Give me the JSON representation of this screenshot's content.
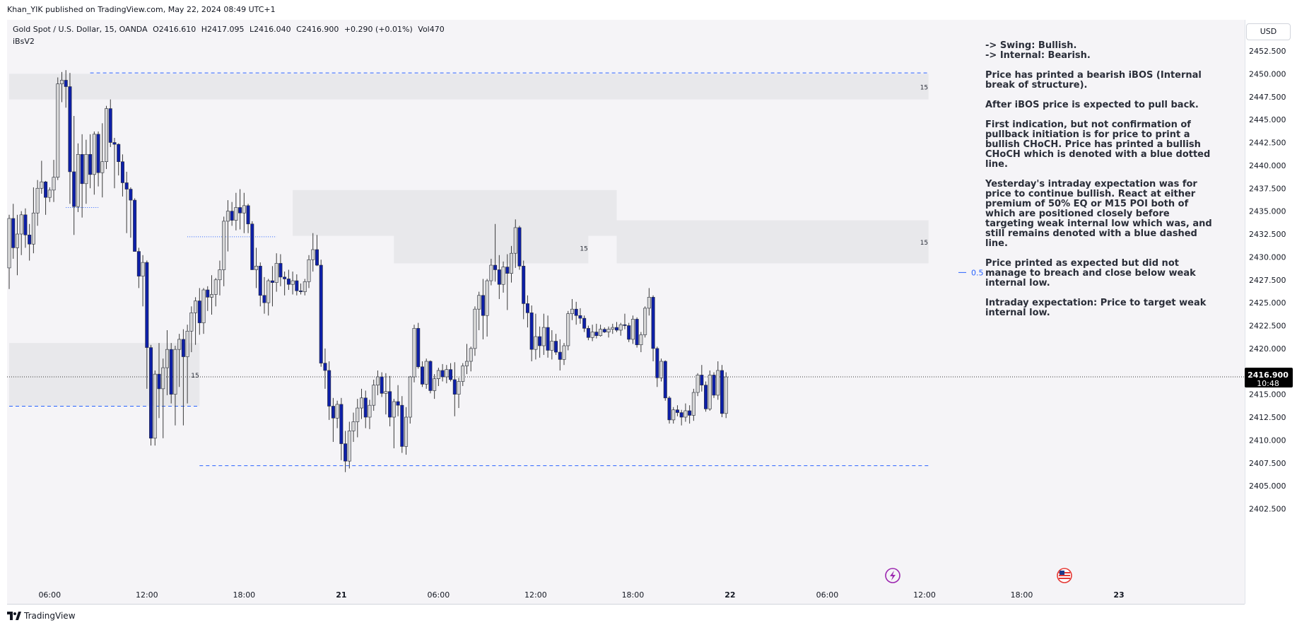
{
  "header": {
    "published_line": "Khan_YIK published on TradingView.com, May 22, 2024 08:49 UTC+1"
  },
  "symbol": {
    "name": "Gold Spot / U.S. Dollar, 15, OANDA",
    "open": "O2416.610",
    "high": "H2417.095",
    "low": "L2416.040",
    "close": "C2416.900",
    "change": "+0.290 (+0.01%)",
    "volume": "Vol470"
  },
  "indicator": {
    "name": "iBsV2"
  },
  "currency_button": "USD",
  "notes": [
    "-> Swing: Bullish.\n-> Internal: Bearish.",
    "Price has printed a bearish iBOS (Internal break of structure).",
    "After iBOS price is expected to pull back.",
    "First indication, but not confirmation of pullback initiation is for price to print a bullish CHoCH. Price has printed a bullish CHoCH which is denoted with a blue dotted line.",
    "Yesterday's intraday expectation was for price to continue bullish. React at either premium of 50% EQ or M15 POI both of which are positioned closely before targeting weak internal low which was, and still remains denoted with a blue dashed line.",
    "Price printed as expected but did not manage to breach and close below weak internal low.",
    "Intraday expectation: Price to target weak internal low."
  ],
  "brand": {
    "label": "TradingView"
  },
  "colors": {
    "bull_body": "#d6d6d6",
    "bear_body": "#0d1fa8",
    "wick": "#3a3a3a",
    "zone": "#e8e8eb",
    "dashed": "#2962ff",
    "price_tag": "#000000"
  },
  "chart_data": {
    "type": "candlestick",
    "title": "Gold Spot / U.S. Dollar, 15, OANDA",
    "yticks": [
      "2452.500",
      "2450.000",
      "2447.500",
      "2445.000",
      "2442.500",
      "2440.000",
      "2437.500",
      "2435.000",
      "2432.500",
      "2430.000",
      "2427.500",
      "2425.000",
      "2422.500",
      "2420.000",
      "2417.500",
      "2415.000",
      "2412.500",
      "2410.000",
      "2407.500",
      "2405.000",
      "2402.500"
    ],
    "ylim": [
      2401.5,
      2455.0
    ],
    "xticks": [
      "06:00",
      "12:00",
      "18:00",
      "21",
      "06:00",
      "12:00",
      "18:00",
      "22",
      "06:00",
      "12:00",
      "18:00",
      "23"
    ],
    "xtick_index": [
      10,
      34,
      58,
      82,
      106,
      130,
      154,
      178,
      202,
      226,
      250,
      274
    ],
    "last_price": "2416.900",
    "countdown": "10:48",
    "last_price_value": 2416.9,
    "eq_label": "0.5",
    "eq_value": 2428.3,
    "zones": [
      {
        "i0": 0,
        "i1": 227,
        "top": 2450.0,
        "bottom": 2447.2,
        "label": "15"
      },
      {
        "i0": 70,
        "i1": 150,
        "top": 2437.3,
        "bottom": 2432.3,
        "label": ""
      },
      {
        "i0": 95,
        "i1": 143,
        "top": 2432.7,
        "bottom": 2429.3,
        "label": "15"
      },
      {
        "i0": 150,
        "i1": 227,
        "top": 2434.0,
        "bottom": 2429.3,
        "label": "15"
      },
      {
        "i0": 0,
        "i1": 47,
        "top": 2420.6,
        "bottom": 2413.7,
        "label": "15"
      }
    ],
    "dashed_lines": [
      {
        "i0": 20,
        "i1": 227,
        "value": 2450.1
      },
      {
        "i0": 0,
        "i1": 47,
        "value": 2413.7
      },
      {
        "i0": 47,
        "i1": 227,
        "value": 2407.2
      }
    ],
    "dotted_lines": [
      {
        "i0": 14,
        "i1": 22,
        "value": 2435.4
      },
      {
        "i0": 44,
        "i1": 66,
        "value": 2432.2
      }
    ],
    "candles": [
      [
        2428.8,
        2434.6,
        2426.5,
        2434.2
      ],
      [
        2434.2,
        2435.8,
        2429.8,
        2431.0
      ],
      [
        2431.0,
        2434.6,
        2428.0,
        2432.5
      ],
      [
        2432.5,
        2435.0,
        2430.2,
        2434.6
      ],
      [
        2434.6,
        2435.3,
        2431.0,
        2432.4
      ],
      [
        2432.4,
        2433.6,
        2429.6,
        2431.4
      ],
      [
        2431.4,
        2437.6,
        2430.4,
        2434.8
      ],
      [
        2434.8,
        2438.4,
        2433.4,
        2437.5
      ],
      [
        2437.5,
        2440.5,
        2436.9,
        2438.2
      ],
      [
        2438.2,
        2438.3,
        2434.6,
        2436.5
      ],
      [
        2436.5,
        2437.6,
        2436.0,
        2437.3
      ],
      [
        2437.3,
        2440.6,
        2436.0,
        2438.7
      ],
      [
        2438.7,
        2449.6,
        2438.4,
        2448.9
      ],
      [
        2448.9,
        2450.2,
        2446.9,
        2449.3
      ],
      [
        2449.3,
        2450.4,
        2446.3,
        2448.6
      ],
      [
        2448.6,
        2450.1,
        2435.8,
        2439.3
      ],
      [
        2439.3,
        2445.4,
        2432.4,
        2435.5
      ],
      [
        2435.5,
        2442.4,
        2434.9,
        2441.2
      ],
      [
        2441.2,
        2443.4,
        2434.3,
        2438.0
      ],
      [
        2438.0,
        2442.8,
        2435.8,
        2441.2
      ],
      [
        2441.2,
        2443.4,
        2437.5,
        2439.0
      ],
      [
        2439.0,
        2443.7,
        2436.8,
        2443.4
      ],
      [
        2443.4,
        2443.7,
        2437.7,
        2439.2
      ],
      [
        2439.2,
        2444.6,
        2436.5,
        2440.4
      ],
      [
        2440.4,
        2446.5,
        2439.6,
        2446.2
      ],
      [
        2446.2,
        2447.2,
        2442.0,
        2442.5
      ],
      [
        2442.5,
        2443.0,
        2437.5,
        2442.3
      ],
      [
        2442.3,
        2442.4,
        2438.9,
        2440.4
      ],
      [
        2440.4,
        2441.2,
        2436.6,
        2438.1
      ],
      [
        2438.1,
        2439.3,
        2432.6,
        2437.4
      ],
      [
        2437.4,
        2437.6,
        2432.1,
        2436.2
      ],
      [
        2436.2,
        2436.4,
        2430.6,
        2430.6
      ],
      [
        2430.6,
        2431.0,
        2426.6,
        2427.9
      ],
      [
        2427.9,
        2430.2,
        2424.6,
        2429.4
      ],
      [
        2429.4,
        2429.6,
        2415.6,
        2420.1
      ],
      [
        2420.1,
        2420.4,
        2409.4,
        2410.2
      ],
      [
        2410.2,
        2417.6,
        2409.4,
        2417.2
      ],
      [
        2417.2,
        2420.6,
        2412.4,
        2415.6
      ],
      [
        2415.6,
        2418.9,
        2410.2,
        2417.9
      ],
      [
        2417.9,
        2422.0,
        2414.9,
        2419.9
      ],
      [
        2419.9,
        2420.6,
        2414.0,
        2415.0
      ],
      [
        2415.0,
        2420.3,
        2411.6,
        2419.9
      ],
      [
        2419.9,
        2421.6,
        2415.8,
        2421.0
      ],
      [
        2421.0,
        2422.1,
        2411.6,
        2419.1
      ],
      [
        2419.1,
        2422.6,
        2414.0,
        2421.9
      ],
      [
        2421.9,
        2424.6,
        2419.6,
        2423.9
      ],
      [
        2423.9,
        2425.6,
        2420.4,
        2425.2
      ],
      [
        2425.2,
        2426.6,
        2421.5,
        2422.8
      ],
      [
        2422.8,
        2426.6,
        2421.6,
        2426.4
      ],
      [
        2426.4,
        2426.8,
        2424.1,
        2425.6
      ],
      [
        2425.6,
        2428.0,
        2423.7,
        2425.9
      ],
      [
        2425.9,
        2427.7,
        2424.6,
        2427.5
      ],
      [
        2427.5,
        2429.6,
        2425.8,
        2428.6
      ],
      [
        2428.6,
        2434.4,
        2426.8,
        2433.9
      ],
      [
        2433.9,
        2436.2,
        2430.6,
        2435.0
      ],
      [
        2435.0,
        2436.0,
        2433.4,
        2434.0
      ],
      [
        2434.0,
        2437.0,
        2432.9,
        2435.4
      ],
      [
        2435.4,
        2437.4,
        2433.0,
        2434.8
      ],
      [
        2434.8,
        2437.0,
        2432.6,
        2435.6
      ],
      [
        2435.6,
        2435.8,
        2432.6,
        2433.6
      ],
      [
        2433.6,
        2433.9,
        2428.6,
        2428.6
      ],
      [
        2428.6,
        2431.0,
        2426.6,
        2429.0
      ],
      [
        2429.0,
        2429.4,
        2424.6,
        2425.8
      ],
      [
        2425.8,
        2427.8,
        2423.8,
        2425.0
      ],
      [
        2425.0,
        2427.6,
        2423.6,
        2427.4
      ],
      [
        2427.4,
        2429.0,
        2424.6,
        2427.2
      ],
      [
        2427.2,
        2430.4,
        2426.2,
        2429.3
      ],
      [
        2429.3,
        2430.3,
        2426.8,
        2427.8
      ],
      [
        2427.8,
        2428.4,
        2425.8,
        2427.6
      ],
      [
        2427.6,
        2428.6,
        2426.4,
        2427.0
      ],
      [
        2427.0,
        2428.4,
        2425.9,
        2427.4
      ],
      [
        2427.4,
        2428.1,
        2425.8,
        2426.3
      ],
      [
        2426.3,
        2427.1,
        2425.9,
        2426.2
      ],
      [
        2426.2,
        2427.6,
        2425.8,
        2427.3
      ],
      [
        2427.3,
        2430.2,
        2426.6,
        2429.7
      ],
      [
        2429.7,
        2432.6,
        2428.4,
        2430.8
      ],
      [
        2430.8,
        2432.4,
        2429.0,
        2429.1
      ],
      [
        2429.1,
        2429.7,
        2418.0,
        2418.4
      ],
      [
        2418.4,
        2420.0,
        2415.6,
        2417.6
      ],
      [
        2417.6,
        2418.6,
        2412.2,
        2413.7
      ],
      [
        2413.7,
        2414.6,
        2409.8,
        2412.4
      ],
      [
        2412.4,
        2414.3,
        2411.3,
        2413.9
      ],
      [
        2413.9,
        2414.6,
        2407.8,
        2409.6
      ],
      [
        2409.6,
        2411.0,
        2406.5,
        2407.7
      ],
      [
        2407.7,
        2412.0,
        2406.9,
        2411.0
      ],
      [
        2411.0,
        2413.0,
        2409.8,
        2412.0
      ],
      [
        2412.0,
        2414.5,
        2410.3,
        2413.5
      ],
      [
        2413.5,
        2415.6,
        2412.3,
        2414.6
      ],
      [
        2414.6,
        2415.4,
        2411.3,
        2412.5
      ],
      [
        2412.5,
        2414.4,
        2411.2,
        2413.8
      ],
      [
        2413.8,
        2416.6,
        2413.2,
        2416.0
      ],
      [
        2416.0,
        2417.6,
        2414.9,
        2416.9
      ],
      [
        2416.9,
        2417.4,
        2414.7,
        2415.1
      ],
      [
        2415.1,
        2417.3,
        2412.8,
        2415.3
      ],
      [
        2415.3,
        2417.0,
        2411.5,
        2412.5
      ],
      [
        2412.5,
        2414.5,
        2409.1,
        2414.2
      ],
      [
        2414.2,
        2416.0,
        2412.6,
        2413.8
      ],
      [
        2413.8,
        2414.8,
        2408.6,
        2409.3
      ],
      [
        2409.3,
        2413.6,
        2408.4,
        2412.5
      ],
      [
        2412.5,
        2417.0,
        2411.8,
        2416.9
      ],
      [
        2416.9,
        2422.6,
        2416.3,
        2422.2
      ],
      [
        2422.2,
        2422.8,
        2417.8,
        2418.0
      ],
      [
        2418.0,
        2418.6,
        2415.8,
        2416.1
      ],
      [
        2416.1,
        2418.9,
        2415.6,
        2418.6
      ],
      [
        2418.6,
        2418.7,
        2415.1,
        2415.4
      ],
      [
        2415.4,
        2417.2,
        2414.5,
        2416.7
      ],
      [
        2416.7,
        2417.9,
        2415.9,
        2417.6
      ],
      [
        2417.6,
        2418.3,
        2416.4,
        2416.9
      ],
      [
        2416.9,
        2418.2,
        2416.2,
        2417.7
      ],
      [
        2417.7,
        2418.4,
        2416.4,
        2416.6
      ],
      [
        2416.6,
        2418.5,
        2412.6,
        2415.0
      ],
      [
        2415.0,
        2416.8,
        2413.5,
        2416.4
      ],
      [
        2416.4,
        2418.4,
        2415.9,
        2418.1
      ],
      [
        2418.1,
        2420.5,
        2417.2,
        2418.6
      ],
      [
        2418.6,
        2420.2,
        2417.5,
        2420.0
      ],
      [
        2420.0,
        2424.6,
        2419.2,
        2424.3
      ],
      [
        2424.3,
        2426.2,
        2422.0,
        2425.8
      ],
      [
        2425.8,
        2427.6,
        2421.0,
        2423.6
      ],
      [
        2423.6,
        2427.6,
        2421.3,
        2427.4
      ],
      [
        2427.4,
        2429.8,
        2426.9,
        2429.1
      ],
      [
        2429.1,
        2433.6,
        2427.3,
        2428.6
      ],
      [
        2428.6,
        2430.2,
        2425.4,
        2427.0
      ],
      [
        2427.0,
        2429.5,
        2426.1,
        2428.9
      ],
      [
        2428.9,
        2430.3,
        2424.2,
        2428.2
      ],
      [
        2428.2,
        2431.2,
        2427.2,
        2430.4
      ],
      [
        2430.4,
        2434.1,
        2428.8,
        2433.2
      ],
      [
        2433.2,
        2433.4,
        2428.6,
        2429.0
      ],
      [
        2429.0,
        2429.6,
        2423.2,
        2424.9
      ],
      [
        2424.9,
        2425.8,
        2422.3,
        2423.9
      ],
      [
        2423.9,
        2424.7,
        2418.6,
        2419.9
      ],
      [
        2419.9,
        2423.8,
        2418.8,
        2421.3
      ],
      [
        2421.3,
        2422.4,
        2419.0,
        2420.3
      ],
      [
        2420.3,
        2423.8,
        2419.3,
        2422.3
      ],
      [
        2422.3,
        2423.6,
        2419.0,
        2419.8
      ],
      [
        2419.8,
        2422.0,
        2418.8,
        2420.8
      ],
      [
        2420.8,
        2421.6,
        2419.3,
        2419.6
      ],
      [
        2419.6,
        2421.0,
        2417.6,
        2418.8
      ],
      [
        2418.8,
        2420.6,
        2418.2,
        2420.3
      ],
      [
        2420.3,
        2424.1,
        2419.8,
        2423.8
      ],
      [
        2423.8,
        2425.4,
        2423.1,
        2424.3
      ],
      [
        2424.3,
        2425.1,
        2422.6,
        2423.6
      ],
      [
        2423.6,
        2424.4,
        2422.7,
        2423.3
      ],
      [
        2423.3,
        2423.6,
        2421.8,
        2422.2
      ],
      [
        2422.2,
        2422.5,
        2420.9,
        2421.2
      ],
      [
        2421.2,
        2422.6,
        2420.8,
        2421.8
      ],
      [
        2421.8,
        2422.7,
        2421.1,
        2421.4
      ],
      [
        2421.4,
        2422.6,
        2421.3,
        2422.1
      ],
      [
        2422.1,
        2422.3,
        2421.7,
        2421.8
      ],
      [
        2421.8,
        2422.4,
        2421.2,
        2422.1
      ],
      [
        2422.1,
        2422.7,
        2421.6,
        2422.3
      ],
      [
        2422.3,
        2422.9,
        2421.8,
        2422.0
      ],
      [
        2422.0,
        2422.8,
        2421.4,
        2422.6
      ],
      [
        2422.6,
        2423.8,
        2422.1,
        2422.5
      ],
      [
        2422.5,
        2422.8,
        2420.7,
        2421.0
      ],
      [
        2421.0,
        2423.6,
        2420.5,
        2423.2
      ],
      [
        2423.2,
        2423.4,
        2420.1,
        2420.4
      ],
      [
        2420.4,
        2421.8,
        2419.6,
        2421.5
      ],
      [
        2421.5,
        2424.6,
        2421.2,
        2424.4
      ],
      [
        2424.4,
        2426.6,
        2423.6,
        2425.6
      ],
      [
        2425.6,
        2425.8,
        2418.6,
        2420.0
      ],
      [
        2420.0,
        2420.2,
        2415.8,
        2416.8
      ],
      [
        2416.8,
        2418.9,
        2416.4,
        2418.6
      ],
      [
        2418.6,
        2418.7,
        2414.3,
        2414.6
      ],
      [
        2414.6,
        2414.8,
        2411.8,
        2412.2
      ],
      [
        2412.2,
        2413.6,
        2411.8,
        2413.3
      ],
      [
        2413.3,
        2413.8,
        2412.6,
        2413.0
      ],
      [
        2413.0,
        2413.3,
        2411.6,
        2412.5
      ],
      [
        2412.5,
        2414.0,
        2412.0,
        2413.2
      ],
      [
        2413.2,
        2413.8,
        2411.8,
        2412.7
      ],
      [
        2412.7,
        2415.6,
        2412.1,
        2415.2
      ],
      [
        2415.2,
        2417.3,
        2414.8,
        2417.1
      ],
      [
        2417.1,
        2418.2,
        2415.3,
        2416.0
      ],
      [
        2416.0,
        2416.4,
        2413.1,
        2413.4
      ],
      [
        2413.4,
        2417.6,
        2413.2,
        2417.1
      ],
      [
        2417.1,
        2417.4,
        2414.6,
        2414.9
      ],
      [
        2414.9,
        2418.6,
        2414.4,
        2417.6
      ],
      [
        2417.6,
        2418.2,
        2412.5,
        2412.9
      ],
      [
        2412.9,
        2417.4,
        2412.4,
        2416.9
      ]
    ]
  }
}
